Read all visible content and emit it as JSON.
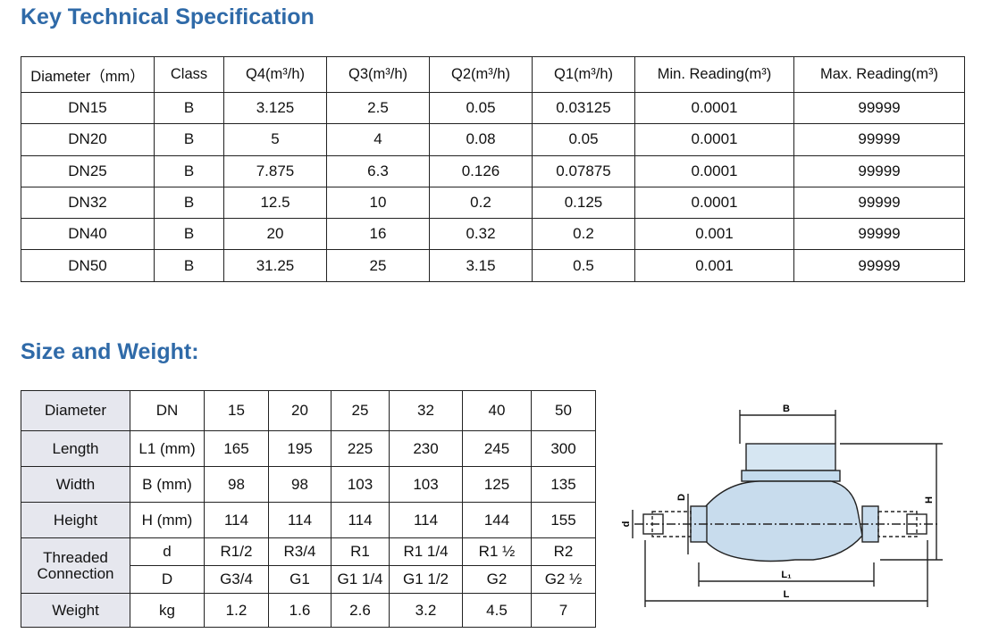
{
  "spec": {
    "title": "Key Technical Specification",
    "headers": [
      "Diameter（mm）",
      "Class",
      "Q4(m³/h)",
      "Q3(m³/h)",
      "Q2(m³/h)",
      "Q1(m³/h)",
      "Min. Reading(m³)",
      "Max. Reading(m³)"
    ],
    "rows": [
      [
        "DN15",
        "B",
        "3.125",
        "2.5",
        "0.05",
        "0.03125",
        "0.0001",
        "99999"
      ],
      [
        "DN20",
        "B",
        "5",
        "4",
        "0.08",
        "0.05",
        "0.0001",
        "99999"
      ],
      [
        "DN25",
        "B",
        "7.875",
        "6.3",
        "0.126",
        "0.07875",
        "0.0001",
        "99999"
      ],
      [
        "DN32",
        "B",
        "12.5",
        "10",
        "0.2",
        "0.125",
        "0.0001",
        "99999"
      ],
      [
        "DN40",
        "B",
        "20",
        "16",
        "0.32",
        "0.2",
        "0.001",
        "99999"
      ],
      [
        "DN50",
        "B",
        "31.25",
        "25",
        "3.15",
        "0.5",
        "0.001",
        "99999"
      ]
    ]
  },
  "size": {
    "title": "Size and Weight:",
    "rows": [
      {
        "label": "Diameter",
        "cells": [
          [
            "DN",
            "15",
            "20",
            "25",
            "32",
            "40",
            "50"
          ]
        ]
      },
      {
        "label": "Length",
        "cells": [
          [
            "L1 (mm)",
            "165",
            "195",
            "225",
            "230",
            "245",
            "300"
          ]
        ]
      },
      {
        "label": "Width",
        "cells": [
          [
            "B (mm)",
            "98",
            "98",
            "103",
            "103",
            "125",
            "135"
          ]
        ]
      },
      {
        "label": "Height",
        "cells": [
          [
            "H (mm)",
            "114",
            "114",
            "114",
            "114",
            "144",
            "155"
          ]
        ]
      },
      {
        "label": "Threaded Connection",
        "cells": [
          [
            "d",
            "R1/2",
            "R3/4",
            "R1",
            "R1 1/4",
            "R1 ½",
            "R2"
          ],
          [
            "D",
            "G3/4",
            "G1",
            "G1 1/4",
            "G1 1/2",
            "G2",
            "G2 ½"
          ]
        ]
      },
      {
        "label": "Weight",
        "cells": [
          [
            "kg",
            "1.2",
            "1.6",
            "2.6",
            "3.2",
            "4.5",
            "7"
          ]
        ]
      }
    ]
  },
  "diagram": {
    "labels": [
      "B",
      "H",
      "D",
      "d",
      "L₁",
      "L"
    ]
  }
}
